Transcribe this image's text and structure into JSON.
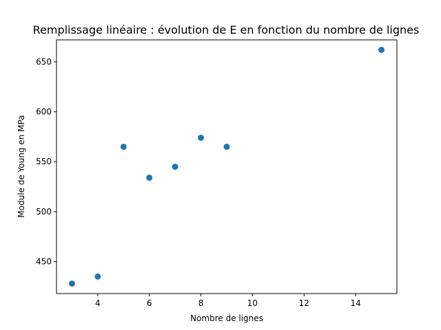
{
  "chart_data": {
    "type": "scatter",
    "title": "Remplissage linéaire : évolution de E en fonction du nombre de lignes",
    "xlabel": "Nombre de lignes",
    "ylabel": "Module de Young en MPa",
    "xlim": [
      2.4,
      15.6
    ],
    "ylim": [
      418,
      672
    ],
    "xticks": [
      4,
      6,
      8,
      10,
      12,
      14
    ],
    "yticks": [
      450,
      500,
      550,
      600,
      650
    ],
    "grid": false,
    "marker_color": "#1f77b4",
    "series": [
      {
        "x": [
          3,
          4,
          5,
          6,
          7,
          8,
          9,
          15
        ],
        "y": [
          428,
          435,
          565,
          534,
          545,
          574,
          565,
          662
        ]
      }
    ]
  }
}
